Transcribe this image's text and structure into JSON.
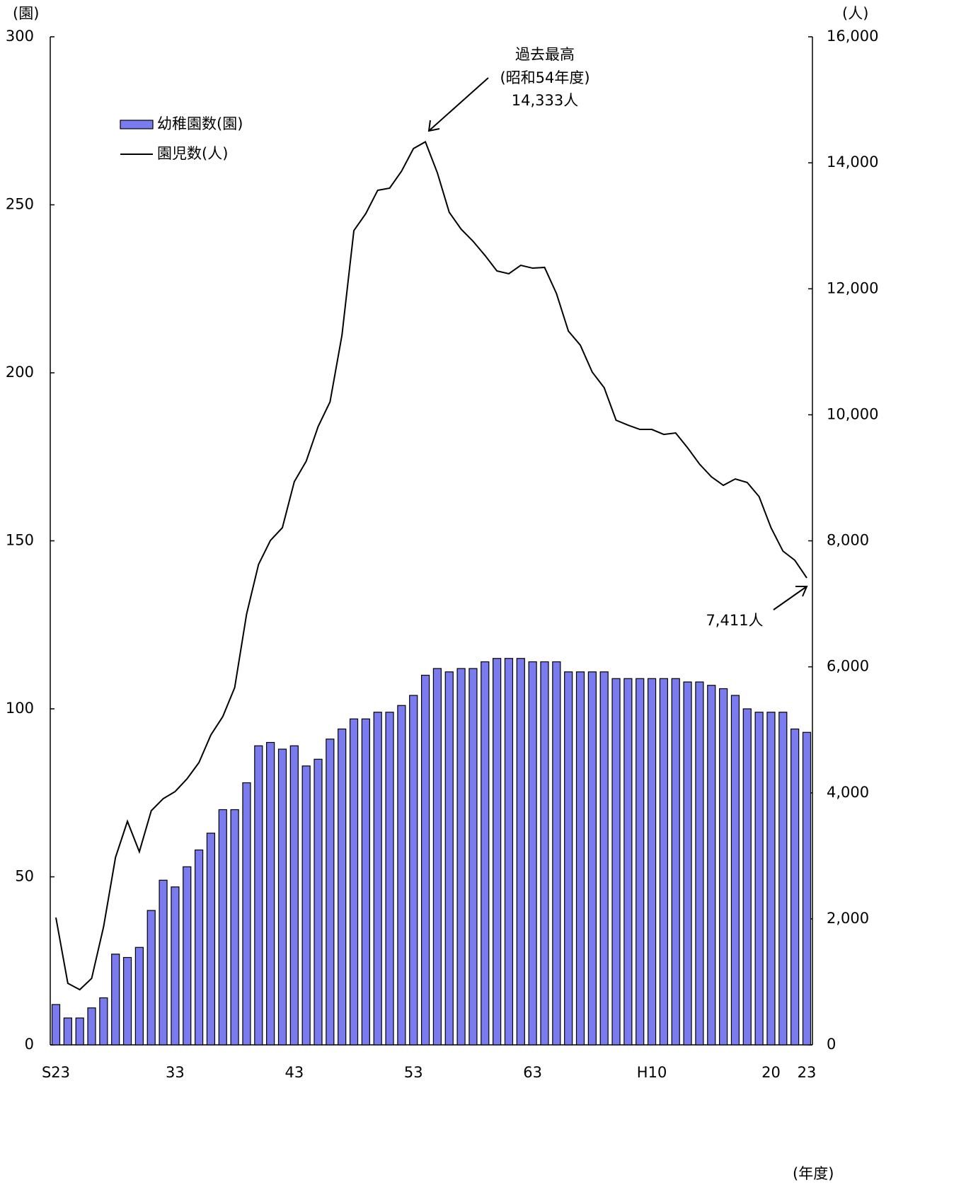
{
  "chart_data": {
    "type": "bar_line",
    "y_label": "(園)",
    "y2_label": "(人)",
    "x_label": "(年度)",
    "annotations": [
      "過去最高",
      "(昭和54年度)",
      "14,333人",
      "7,411人"
    ],
    "categories": [
      "S23",
      null,
      null,
      null,
      null,
      null,
      null,
      null,
      null,
      null,
      "33",
      null,
      null,
      null,
      null,
      null,
      null,
      null,
      null,
      null,
      "43",
      null,
      null,
      null,
      null,
      null,
      null,
      null,
      null,
      null,
      "53",
      null,
      null,
      null,
      null,
      null,
      null,
      null,
      null,
      null,
      "63",
      null,
      null,
      null,
      null,
      null,
      null,
      null,
      null,
      null,
      "H10",
      null,
      null,
      null,
      null,
      null,
      null,
      null,
      null,
      null,
      "20",
      null,
      null,
      "23"
    ],
    "series": [
      {
        "name": "幼稚園数(園)",
        "type": "bar",
        "color": "#7b7bf0",
        "values": [
          12,
          8,
          8,
          11,
          14,
          27,
          26,
          29,
          40,
          49,
          47,
          53,
          58,
          63,
          70,
          70,
          78,
          89,
          90,
          88,
          89,
          83,
          85,
          91,
          94,
          97,
          97,
          99,
          99,
          101,
          104,
          110,
          112,
          111,
          112,
          112,
          114,
          115,
          115,
          115,
          114,
          114,
          114,
          111,
          111,
          111,
          111,
          109,
          109,
          109,
          109,
          109,
          109,
          108,
          108,
          107,
          106,
          104,
          100,
          99,
          99,
          99,
          94,
          93
        ]
      },
      {
        "name": "園児数(人)",
        "type": "line",
        "axis": "y2",
        "color": "#000000",
        "values": [
          2021,
          977,
          876,
          1055,
          1875,
          2975,
          3548,
          3065,
          3716,
          3907,
          4020,
          4222,
          4480,
          4918,
          5210,
          5670,
          6838,
          7624,
          8006,
          8208,
          8938,
          9263,
          9813,
          10206,
          11262,
          12924,
          13193,
          13564,
          13598,
          13867,
          14226,
          14333,
          13844,
          13215,
          12946,
          12755,
          12530,
          12284,
          12239,
          12373,
          12328,
          12340,
          11924,
          11329,
          11105,
          10678,
          10431,
          9914,
          9836,
          9768,
          9768,
          9689,
          9712,
          9477,
          9218,
          9016,
          8881,
          8982,
          8926,
          8702,
          8208,
          7837,
          7691,
          7411
        ]
      }
    ],
    "ylim": [
      0,
      300
    ],
    "yticks": [
      0,
      50,
      100,
      150,
      200,
      250,
      300
    ],
    "y2lim": [
      0,
      16000
    ],
    "y2ticks": [
      0,
      {
        "value": 2000,
        "label": "2,000"
      },
      {
        "value": 4000,
        "label": "4,000"
      },
      {
        "value": 6000,
        "label": "6,000"
      },
      {
        "value": 8000,
        "label": "8,000"
      },
      {
        "value": 10000,
        "label": "10,000"
      },
      {
        "value": 12000,
        "label": "12,000"
      },
      {
        "value": 14000,
        "label": "14,000"
      },
      {
        "value": 16000,
        "label": "16,000"
      }
    ],
    "legend": "upper left"
  }
}
